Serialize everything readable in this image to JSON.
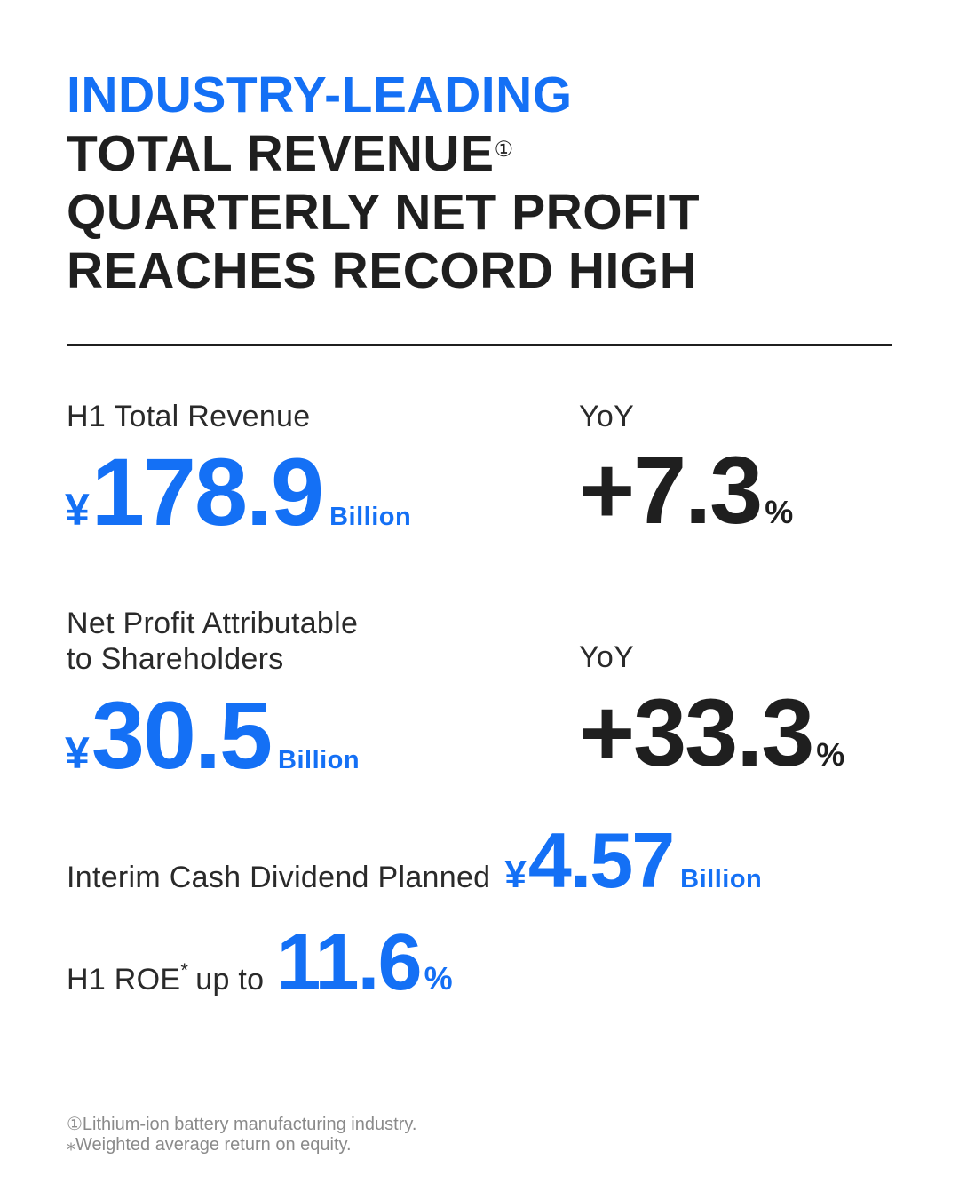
{
  "colors": {
    "accent": "#1470f5",
    "text": "#1f1f1f"
  },
  "headline": {
    "line1": "INDUSTRY-LEADING",
    "line2": "TOTAL REVENUE",
    "line2_note": "①",
    "line3": "QUARTERLY NET PROFIT",
    "line4": "REACHES RECORD HIGH"
  },
  "revenue": {
    "label": "H1 Total Revenue",
    "currency": "¥",
    "value": "178.9",
    "unit": "Billion"
  },
  "revenue_yoy": {
    "label": "YoY",
    "value": "+7.3",
    "unit": "%"
  },
  "net_profit": {
    "label_line1": "Net Profit Attributable",
    "label_line2": "to Shareholders",
    "currency": "¥",
    "value": "30.5",
    "unit": "Billion"
  },
  "net_profit_yoy": {
    "label": "YoY",
    "value": "+33.3",
    "unit": "%"
  },
  "dividend": {
    "label": "Interim Cash Dividend Planned",
    "currency": "¥",
    "value": "4.57",
    "unit": "Billion"
  },
  "roe": {
    "label_prefix": "H1 ROE",
    "label_mark": "*",
    "label_suffix": "up to",
    "value": "11.6",
    "unit": "%"
  },
  "footnotes": [
    "①Lithium-ion battery manufacturing industry.",
    "⁎Weighted average return on equity."
  ]
}
